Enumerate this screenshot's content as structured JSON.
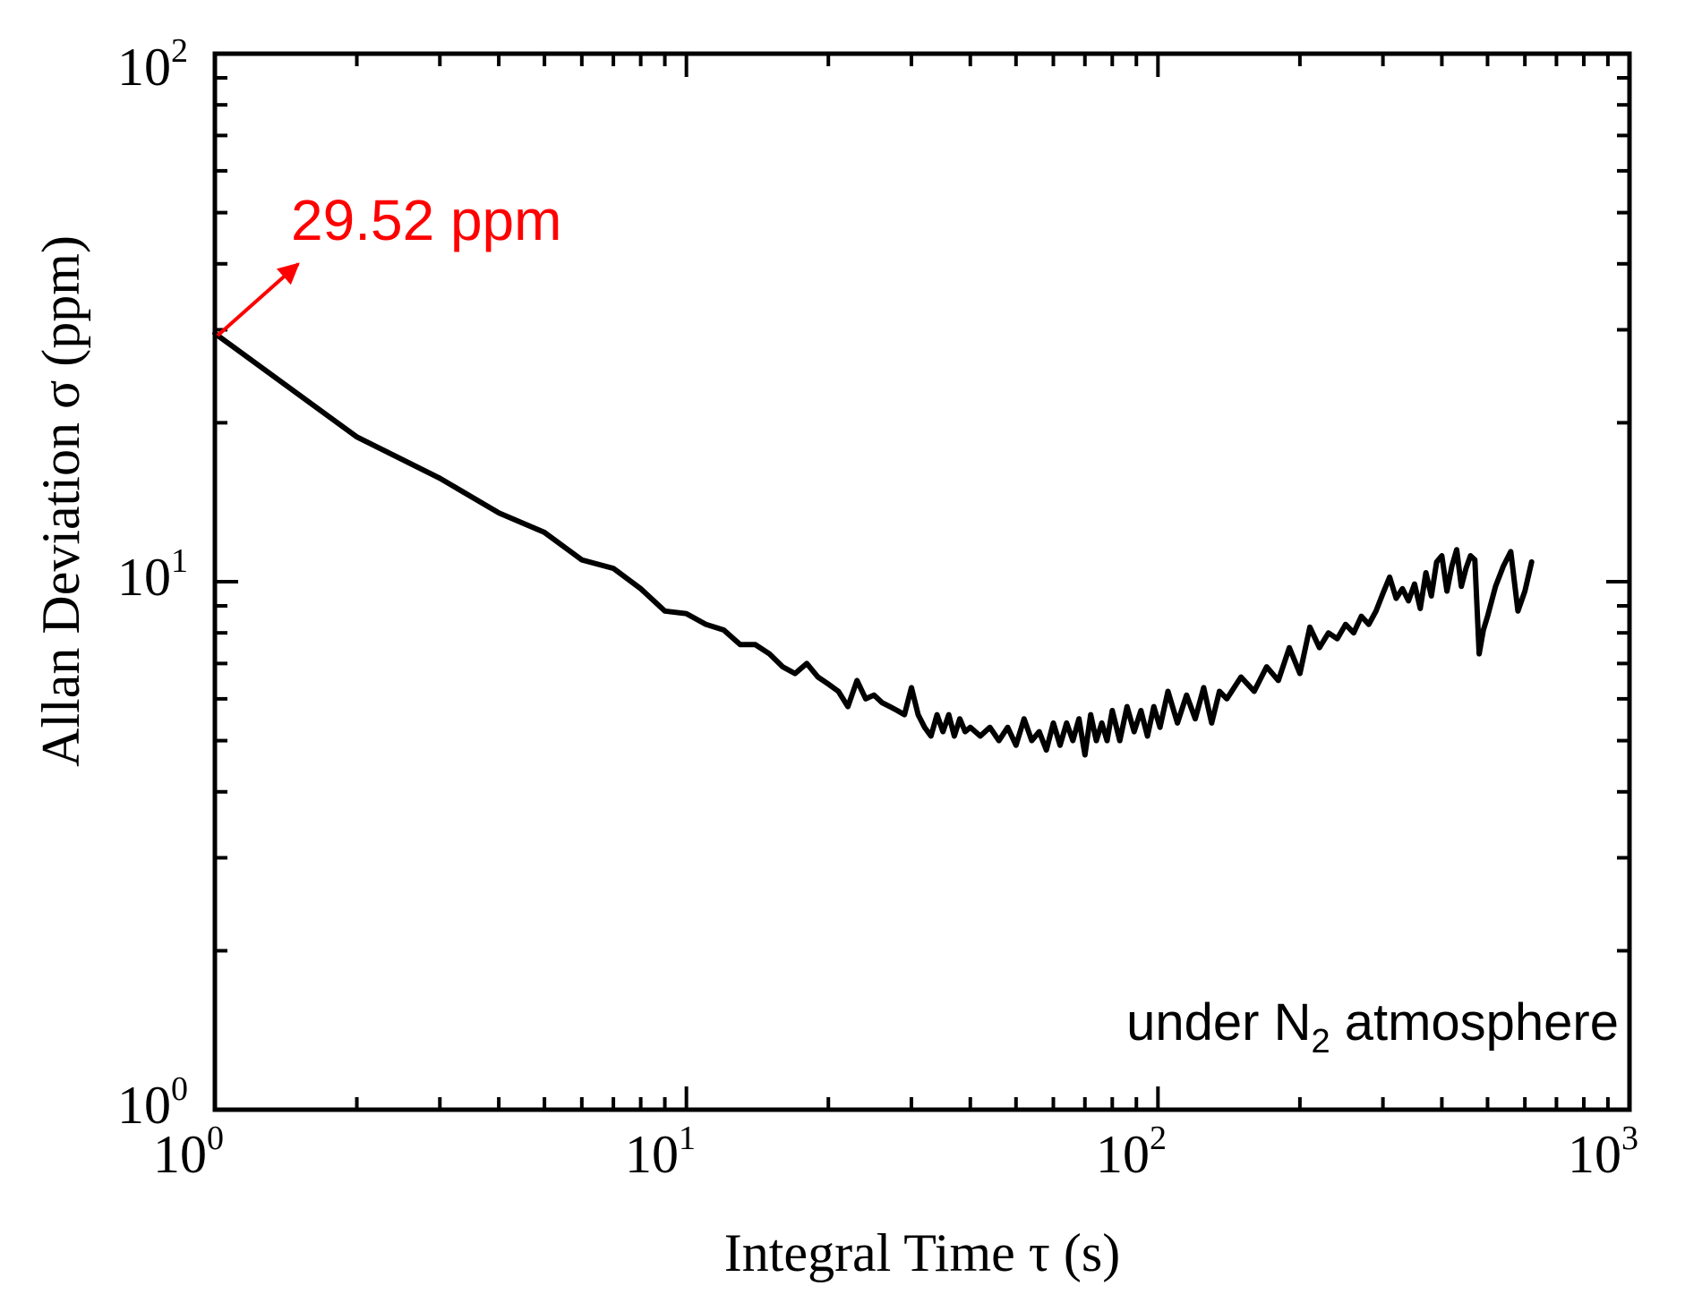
{
  "chart_data": {
    "type": "line",
    "xscale": "log",
    "yscale": "log",
    "xlim": [
      1,
      1000
    ],
    "ylim": [
      1,
      100
    ],
    "xlabel": "Integral Time τ (s)",
    "ylabel": "Allan Deviation σ (ppm)",
    "x_ticks": [
      {
        "base": "10",
        "exp": "0",
        "value": 1
      },
      {
        "base": "10",
        "exp": "1",
        "value": 10
      },
      {
        "base": "10",
        "exp": "2",
        "value": 100
      },
      {
        "base": "10",
        "exp": "3",
        "value": 1000
      }
    ],
    "y_ticks": [
      {
        "base": "10",
        "exp": "0",
        "value": 1
      },
      {
        "base": "10",
        "exp": "1",
        "value": 10
      },
      {
        "base": "10",
        "exp": "2",
        "value": 100
      }
    ],
    "series": [
      {
        "name": "Allan deviation",
        "color": "#000000",
        "x": [
          1,
          2,
          3,
          4,
          5,
          6,
          7,
          8,
          9,
          10,
          11,
          12,
          13,
          14,
          15,
          16,
          17,
          18,
          19,
          20,
          21,
          22,
          23,
          24,
          25,
          26,
          27,
          28,
          29,
          30,
          31,
          32,
          33,
          34,
          35,
          36,
          37,
          38,
          39,
          40,
          42,
          44,
          46,
          48,
          50,
          52,
          54,
          56,
          58,
          60,
          62,
          64,
          66,
          68,
          70,
          72,
          74,
          76,
          78,
          80,
          83,
          86,
          89,
          92,
          95,
          98,
          101,
          105,
          110,
          115,
          120,
          125,
          130,
          135,
          140,
          150,
          160,
          170,
          180,
          190,
          200,
          210,
          220,
          230,
          240,
          250,
          260,
          270,
          280,
          290,
          300,
          310,
          320,
          330,
          340,
          350,
          360,
          370,
          380,
          390,
          400,
          410,
          420,
          430,
          440,
          450,
          460,
          470,
          480,
          490,
          500,
          520,
          540,
          560,
          580,
          600,
          620
        ],
        "y": [
          29.52,
          18.8,
          15.7,
          13.5,
          12.4,
          11.0,
          10.6,
          9.7,
          8.8,
          8.7,
          8.3,
          8.1,
          7.6,
          7.6,
          7.3,
          6.9,
          6.7,
          7.0,
          6.6,
          6.4,
          6.2,
          5.8,
          6.5,
          6.0,
          6.1,
          5.9,
          5.8,
          5.7,
          5.6,
          6.3,
          5.6,
          5.3,
          5.1,
          5.6,
          5.2,
          5.6,
          5.1,
          5.5,
          5.2,
          5.3,
          5.1,
          5.3,
          5.0,
          5.3,
          4.9,
          5.5,
          5.0,
          5.2,
          4.8,
          5.4,
          4.9,
          5.4,
          5.0,
          5.5,
          4.7,
          5.6,
          5.0,
          5.4,
          5.0,
          5.7,
          5.0,
          5.8,
          5.2,
          5.7,
          5.1,
          5.8,
          5.3,
          6.2,
          5.4,
          6.1,
          5.5,
          6.3,
          5.4,
          6.2,
          6.0,
          6.6,
          6.2,
          6.9,
          6.5,
          7.5,
          6.7,
          8.2,
          7.5,
          8.0,
          7.8,
          8.3,
          8.0,
          8.6,
          8.3,
          8.8,
          9.5,
          10.2,
          9.3,
          9.7,
          9.2,
          9.9,
          8.9,
          10.4,
          9.4,
          10.9,
          11.2,
          9.6,
          10.7,
          11.5,
          9.8,
          10.6,
          11.2,
          11.0,
          7.3,
          8.1,
          8.6,
          9.8,
          10.7,
          11.4,
          8.8,
          9.6,
          10.9
        ]
      }
    ],
    "annotations": [
      {
        "text": "29.52 ppm",
        "color": "#ff0000",
        "x": 1,
        "y": 29.52,
        "arrow": true
      },
      {
        "text_prefix": "under N",
        "subscript": "2",
        "text_suffix": " atmosphere",
        "color": "#000000",
        "position": "bottom-right"
      }
    ],
    "grid": false,
    "legend": "none"
  }
}
